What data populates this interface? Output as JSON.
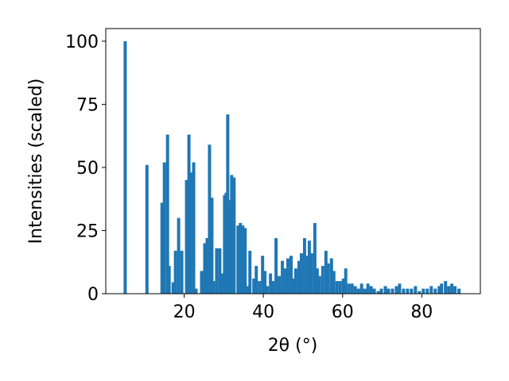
{
  "chart_data": {
    "type": "bar",
    "xlabel": "2θ (°)",
    "ylabel": "Intensities (scaled)",
    "color": "#1f77b4",
    "bar_width": 0.8,
    "x": [
      5.1,
      10.6,
      14.4,
      15,
      15.8,
      16.2,
      17.2,
      17.8,
      18.6,
      19.4,
      20.6,
      21.2,
      21.6,
      22.4,
      23,
      24.4,
      25.2,
      25.8,
      26.4,
      27,
      27.4,
      28.2,
      29,
      29.6,
      30.2,
      30.6,
      31,
      31.4,
      32,
      32.6,
      33.6,
      34.2,
      34.8,
      35.4,
      36,
      36.6,
      37.6,
      38.2,
      39,
      39.8,
      40.4,
      41,
      41.8,
      42.4,
      43.2,
      44,
      44.8,
      45.6,
      46.2,
      47,
      47.6,
      48.2,
      49,
      49.6,
      50.4,
      51,
      51.6,
      52.2,
      53,
      53.6,
      54.2,
      55,
      55.8,
      56.4,
      57.2,
      57.8,
      58.6,
      59.4,
      60.2,
      60.8,
      61.6,
      62.4,
      63.2,
      64,
      64.8,
      65.6,
      66.4,
      67.2,
      68,
      69,
      69.8,
      70.8,
      71.6,
      72.6,
      73.6,
      74.4,
      75.4,
      76.4,
      77.4,
      78.4,
      79.4,
      80.4,
      81.4,
      82.4,
      83.4,
      84.4,
      85,
      86,
      86.8,
      87.6,
      88.4,
      89.4
    ],
    "values": [
      100,
      51,
      36,
      52,
      63,
      11,
      4.5,
      17,
      30,
      17,
      45,
      63,
      48,
      52,
      2,
      9,
      20,
      22,
      59,
      38,
      5,
      18,
      18,
      8,
      39,
      40,
      71,
      37,
      47,
      46,
      27,
      28,
      27,
      26,
      3,
      17,
      6,
      11,
      5,
      15,
      9,
      3,
      8,
      5,
      22,
      7,
      13,
      10,
      14,
      15,
      6,
      10,
      13,
      16,
      22,
      15,
      21,
      16,
      28,
      10,
      7,
      11,
      17,
      12,
      14,
      9,
      5,
      5,
      6,
      10,
      4,
      4,
      3,
      2,
      4,
      2,
      4,
      3,
      2,
      1,
      2,
      3,
      2,
      2,
      3,
      4,
      2,
      2,
      2,
      3,
      1,
      2,
      2,
      3,
      2,
      3,
      4,
      5,
      3,
      4,
      3,
      2
    ],
    "xlim": [
      0.2,
      94.8
    ],
    "xticks": [
      20,
      40,
      60,
      80
    ],
    "ylim": [
      0,
      105
    ],
    "yticks": [
      0,
      25,
      50,
      75,
      100
    ]
  }
}
